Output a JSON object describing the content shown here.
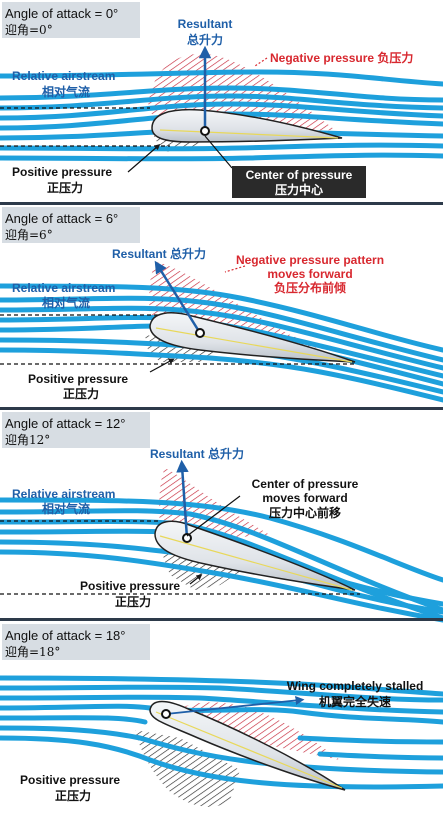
{
  "panels": [
    {
      "title": "Angle of attack = 0°",
      "title_cn": "迎角=0°",
      "labels": {
        "resultant": "Resultant",
        "resultant_cn": "总升力",
        "negative": "Negative pressure",
        "negative_cn": "负压力",
        "airstream": "Relative airstream",
        "airstream_cn": "相对气流",
        "positive": "Positive pressure",
        "positive_cn": "正压力",
        "center": "Center of pressure",
        "center_cn": "压力中心"
      }
    },
    {
      "title": "Angle of attack = 6°",
      "title_cn": "迎角=6°",
      "labels": {
        "resultant": "Resultant 总升力",
        "negative_1": "Negative pressure pattern",
        "negative_2": "moves forward",
        "negative_cn": "负压分布前倾",
        "airstream": "Relative airstream",
        "airstream_cn": "相对气流",
        "positive": "Positive pressure",
        "positive_cn": "正压力"
      }
    },
    {
      "title": "Angle of attack = 12°",
      "title_cn": "迎角12°",
      "labels": {
        "resultant": "Resultant 总升力",
        "airstream": "Relative airstream",
        "airstream_cn": "相对气流",
        "center_1": "Center of pressure",
        "center_2": "moves forward",
        "center_cn": "压力中心前移",
        "positive": "Positive pressure",
        "positive_cn": "正压力"
      }
    },
    {
      "title": "Angle of attack = 18°",
      "title_cn": "迎角=18°",
      "labels": {
        "stalled": "Wing completely stalled",
        "stalled_cn": "机翼完全失速",
        "positive": "Positive pressure",
        "positive_cn": "正压力"
      }
    }
  ],
  "colors": {
    "title_box": "#d7dde3",
    "airflow": "#1ea0dc",
    "label_blue": "#1f5fa8",
    "label_red": "#d8282f",
    "negative_hatch": "#c6283a",
    "positive_hatch": "#2b2b2b",
    "cp_box": "#2a2a2a",
    "separator": "#2d3a4a"
  }
}
